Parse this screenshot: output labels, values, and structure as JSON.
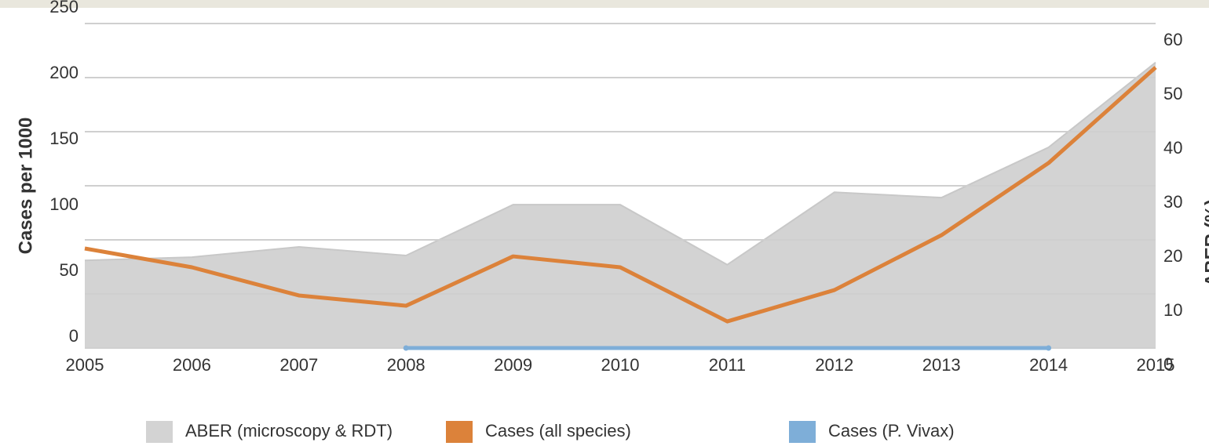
{
  "chart_data": {
    "type": "line",
    "x": [
      2005,
      2006,
      2007,
      2008,
      2009,
      2010,
      2011,
      2012,
      2013,
      2014,
      2015
    ],
    "xlim": [
      2005,
      2015
    ],
    "xticks": [
      2005,
      2006,
      2007,
      2008,
      2009,
      2010,
      2011,
      2012,
      2013,
      2014,
      2015
    ],
    "ylabel": "Cases per 1000",
    "y2label": "ABER (%)",
    "ylim": [
      0,
      250
    ],
    "yticks": [
      0,
      50,
      100,
      150,
      200,
      250
    ],
    "y2lim": [
      0,
      60
    ],
    "y2ticks": [
      0,
      10,
      20,
      30,
      40,
      50,
      60
    ],
    "grid": true,
    "legend": "bottom",
    "series": [
      {
        "name": "ABER (microscopy & RDT)",
        "color": "#d3d3d3",
        "axis": "y2",
        "kind": "area",
        "values": [
          16.2,
          16.8,
          18.7,
          17.1,
          26.5,
          26.5,
          15.4,
          28.8,
          27.8,
          37.1,
          52.8
        ]
      },
      {
        "name": "Cases (all species)",
        "color": "#dc823a",
        "values": [
          75.6,
          61.3,
          39.9,
          32.1,
          69.6,
          61.3,
          20.2,
          44.0,
          85.7,
          140.5,
          213.1
        ]
      },
      {
        "name": "Cases (P. Vivax)",
        "color": "#7eaed8",
        "values": [
          null,
          null,
          null,
          0,
          0,
          0,
          0,
          0,
          0,
          0,
          null
        ]
      }
    ]
  }
}
